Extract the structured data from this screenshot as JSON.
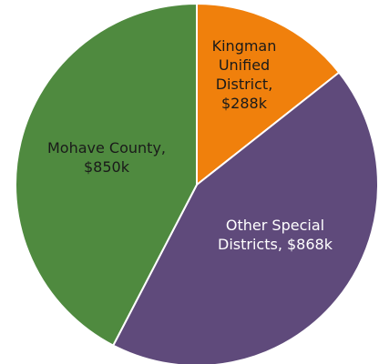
{
  "chart_data": {
    "type": "pie",
    "categories": [
      "Kingman Unified District,",
      "Other Special Districts,",
      "Mohave County,"
    ],
    "values": [
      288,
      868,
      850
    ],
    "value_labels": [
      "$288k",
      "$868k",
      "$850k"
    ],
    "colors": [
      "#f0800c",
      "#5f4a7b",
      "#4f8a3f"
    ]
  }
}
